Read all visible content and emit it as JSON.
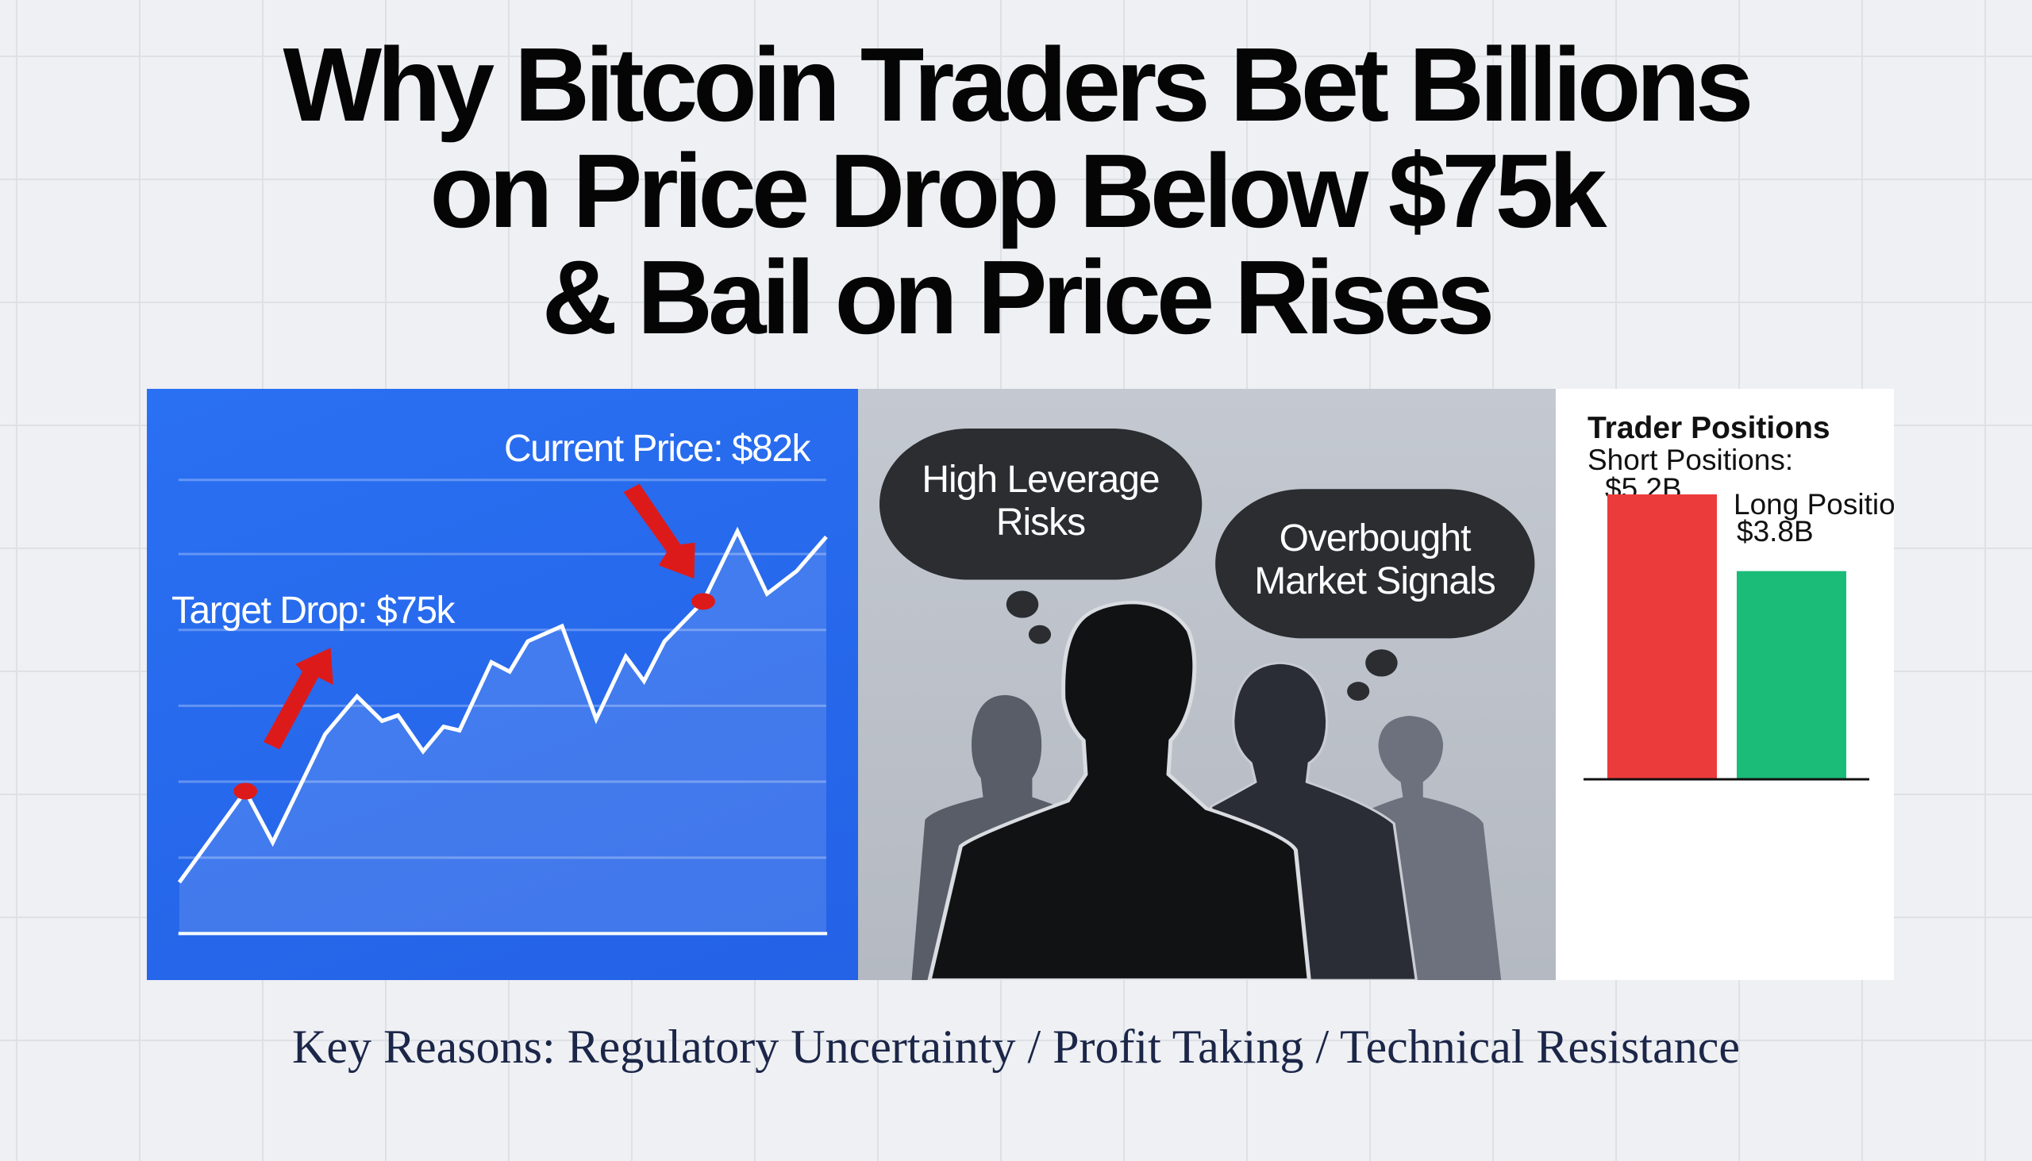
{
  "title": {
    "lines": [
      "Why Bitcoin Traders Bet Billions",
      "on Price Drop Below $75k",
      "& Bail on Price Rises"
    ]
  },
  "price_panel": {
    "current_price_label": "Current Price: $82k",
    "target_label": "Target Drop: $75k",
    "background_color": "#2668ec",
    "marker_color": "#dd1a1a",
    "arrow_color": "#dd1a1a"
  },
  "sentiment_panel": {
    "bubbles": [
      {
        "lines": [
          "High Leverage",
          "Risks"
        ]
      },
      {
        "lines": [
          "Overbought",
          "Market Signals"
        ]
      }
    ],
    "icons": [
      "thought-bubble-icon",
      "person-silhouette-icon"
    ]
  },
  "chart_data": {
    "type": "bar",
    "title": "Trader Positions",
    "categories": [
      "Short Positions:",
      "Long Positions:"
    ],
    "values": [
      5.2,
      3.8
    ],
    "value_labels": [
      "$5.2B",
      "$3.8B"
    ],
    "unit": "B USD",
    "colors": [
      "#ec3b3b",
      "#1bbb78"
    ],
    "grid": false
  },
  "footer": {
    "text": "Key Reasons: Regulatory Uncertainty / Profit Taking / Technical Resistance"
  }
}
